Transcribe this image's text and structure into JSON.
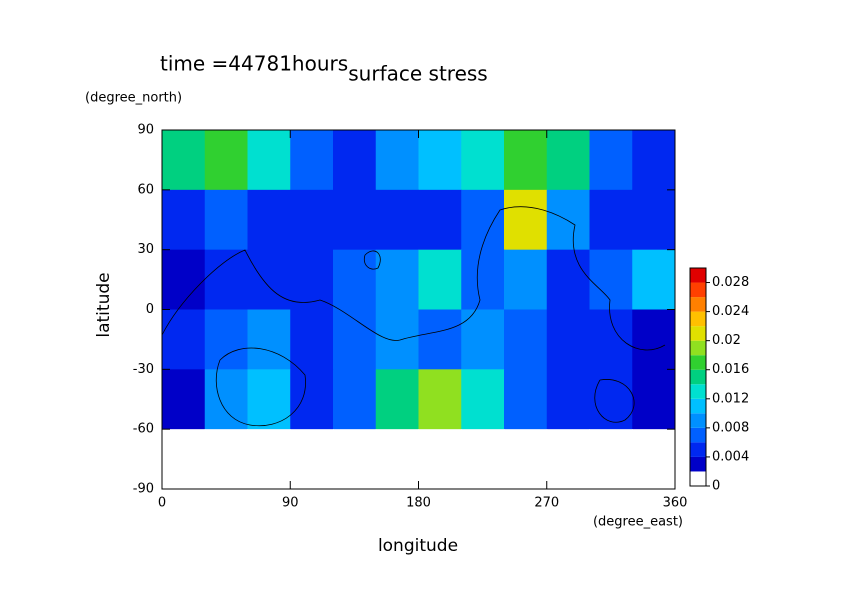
{
  "chart_data": {
    "type": "heatmap",
    "title": "surface stress",
    "subtitle": "time =44781hours",
    "x_label": "longitude",
    "x_unit": "(degree_east)",
    "y_label": "latitude",
    "y_unit": "(degree_north)",
    "x": [
      15,
      45,
      75,
      105,
      135,
      165,
      195,
      225,
      255,
      285,
      315,
      345
    ],
    "y": [
      75,
      45,
      15,
      -15,
      -45,
      -75
    ],
    "z": [
      [
        0.014,
        0.016,
        0.012,
        0.006,
        0.005,
        0.008,
        0.01,
        0.012,
        0.016,
        0.014,
        0.006,
        0.005
      ],
      [
        0.004,
        0.006,
        0.005,
        0.004,
        0.005,
        0.004,
        0.005,
        0.006,
        0.02,
        0.008,
        0.005,
        0.004
      ],
      [
        0.003,
        0.005,
        0.004,
        0.004,
        0.006,
        0.008,
        0.012,
        0.006,
        0.008,
        0.005,
        0.006,
        0.01
      ],
      [
        0.004,
        0.006,
        0.008,
        0.005,
        0.006,
        0.008,
        0.006,
        0.008,
        0.006,
        0.004,
        0.004,
        0.003
      ],
      [
        0.003,
        0.008,
        0.01,
        0.004,
        0.006,
        0.014,
        0.018,
        0.012,
        0.006,
        0.004,
        0.004,
        0.003
      ],
      [
        0,
        0,
        0,
        0,
        0,
        0,
        0,
        0,
        0,
        0,
        0,
        0
      ]
    ],
    "xlim": [
      0,
      360
    ],
    "xticks": [
      0,
      90,
      180,
      270,
      360
    ],
    "ylim": [
      -90,
      90
    ],
    "yticks": [
      -90,
      -60,
      -30,
      0,
      30,
      60,
      90
    ],
    "levels": [
      0,
      0.002,
      0.004,
      0.006,
      0.008,
      0.01,
      0.012,
      0.014,
      0.016,
      0.018,
      0.02,
      0.022,
      0.024,
      0.026,
      0.028,
      0.03
    ],
    "colors": [
      "#ffffff",
      "#0000c8",
      "#0028f0",
      "#0060ff",
      "#0090ff",
      "#00c0ff",
      "#00e0d0",
      "#00d080",
      "#30d030",
      "#90e020",
      "#e0e000",
      "#ffc000",
      "#ff8000",
      "#ff4000",
      "#e00000"
    ],
    "colorbar_ticks": [
      0,
      0.004,
      0.008,
      0.012,
      0.016,
      0.02,
      0.024,
      0.028
    ]
  }
}
